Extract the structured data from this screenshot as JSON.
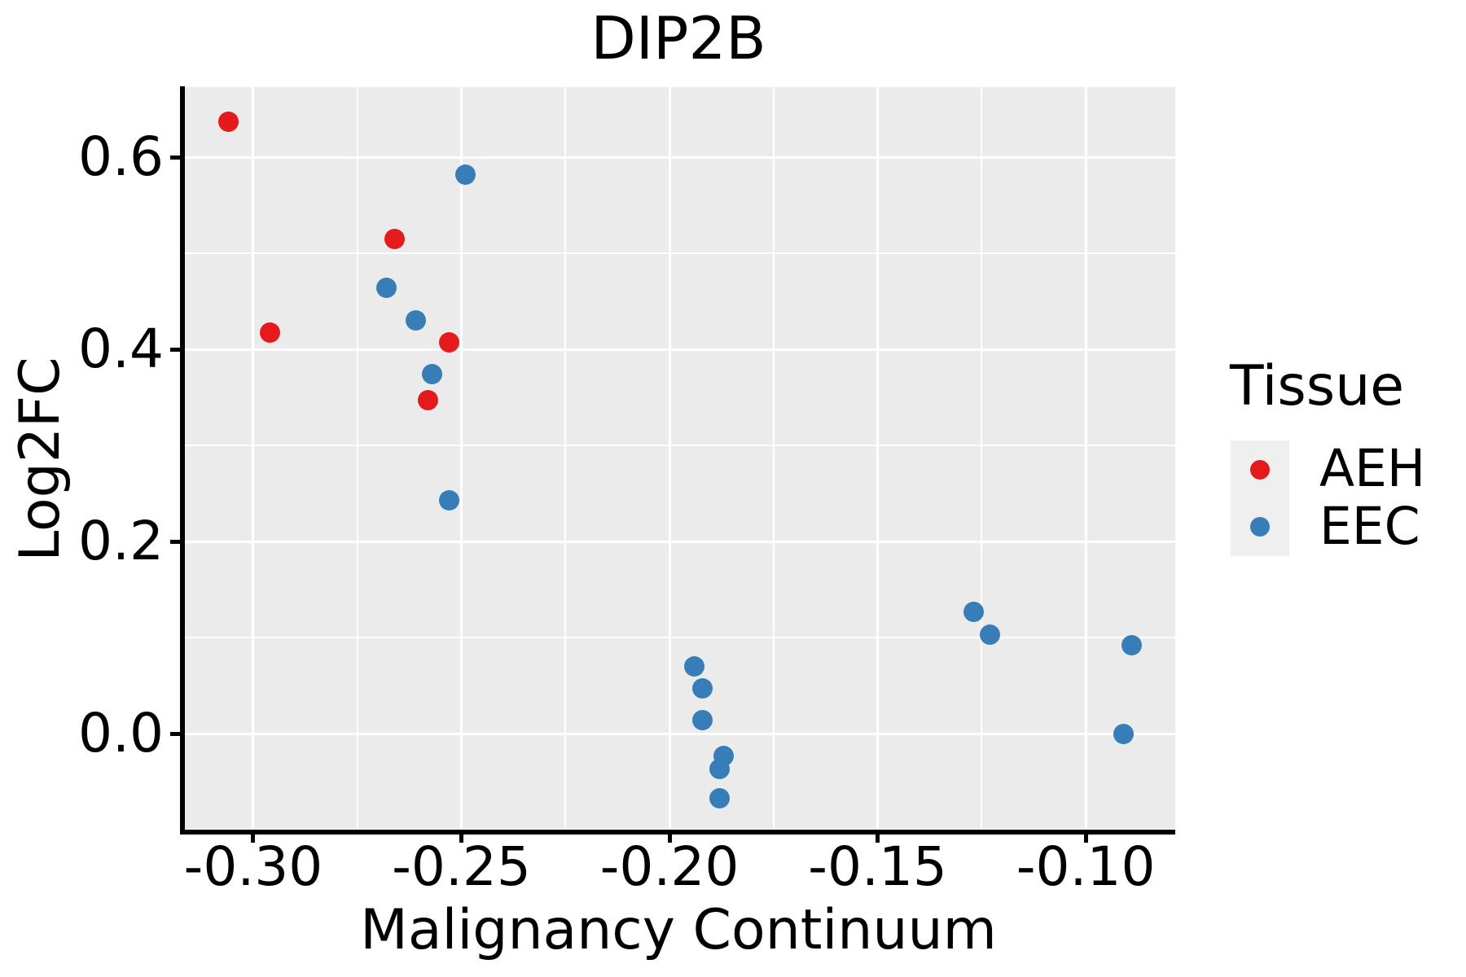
{
  "chart_data": {
    "type": "scatter",
    "title": "DIP2B",
    "xlabel": "Malignancy Continuum",
    "ylabel": "Log2FC",
    "legend_title": "Tissue",
    "legend_position": "right",
    "grid": true,
    "xlim": [
      -0.3172,
      -0.0785
    ],
    "ylim": [
      -0.1025,
      0.6729
    ],
    "x_ticks": {
      "labels": [
        "-0.30",
        "-0.25",
        "-0.20",
        "-0.15",
        "-0.10"
      ],
      "values": [
        -0.3,
        -0.25,
        -0.2,
        -0.15,
        -0.1
      ],
      "minor_values": [
        -0.275,
        -0.225,
        -0.175,
        -0.125
      ]
    },
    "y_ticks": {
      "labels": [
        "0.6",
        "0.4",
        "0.2",
        "0.0"
      ],
      "values": [
        0.6,
        0.4,
        0.2,
        0.0
      ],
      "minor_values": [
        0.5,
        0.3,
        0.1,
        -0.1
      ]
    },
    "series": [
      {
        "name": "AEH",
        "color": "#E41A1C",
        "points": [
          [
            -0.306,
            0.637
          ],
          [
            -0.296,
            0.417
          ],
          [
            -0.266,
            0.515
          ],
          [
            -0.253,
            0.407
          ],
          [
            -0.258,
            0.347
          ]
        ]
      },
      {
        "name": "EEC",
        "color": "#377EB8",
        "points": [
          [
            -0.249,
            0.582
          ],
          [
            -0.268,
            0.464
          ],
          [
            -0.261,
            0.43
          ],
          [
            -0.257,
            0.374
          ],
          [
            -0.253,
            0.243
          ],
          [
            -0.194,
            0.07
          ],
          [
            -0.192,
            0.047
          ],
          [
            -0.192,
            0.014
          ],
          [
            -0.187,
            -0.023
          ],
          [
            -0.188,
            -0.037
          ],
          [
            -0.188,
            -0.067
          ],
          [
            -0.127,
            0.127
          ],
          [
            -0.123,
            0.103
          ],
          [
            -0.089,
            0.092
          ],
          [
            -0.091,
            0.0
          ]
        ]
      }
    ]
  },
  "colors": {
    "background": "#FFFFFF",
    "panel_background": "#EBEBEB",
    "gridline": "#FFFFFF",
    "axis_line": "#000000",
    "text": "#000000",
    "legend_key_background": "#EFEFEF",
    "aeh": "#E41A1C",
    "eec": "#377EB8"
  }
}
